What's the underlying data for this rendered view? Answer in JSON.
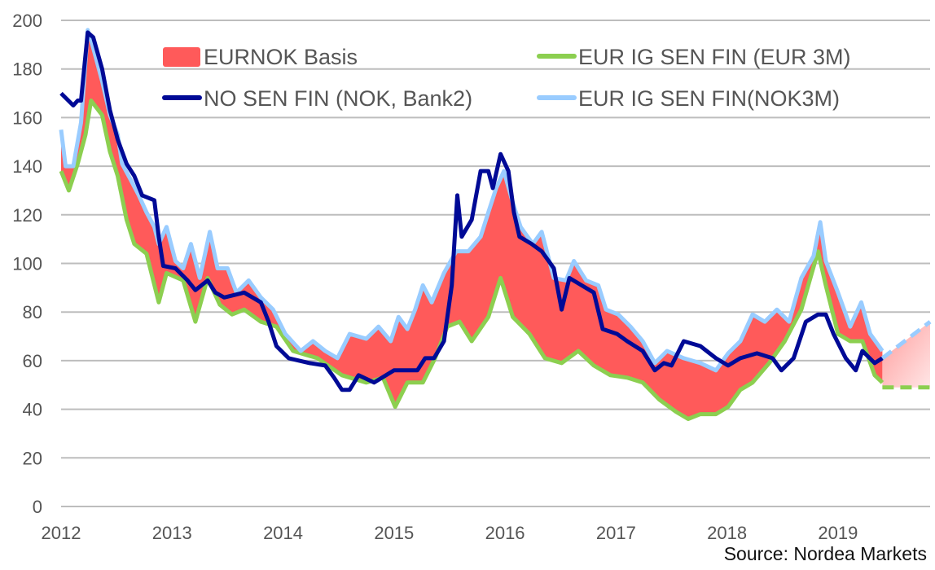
{
  "chart_data": {
    "type": "line",
    "title": "",
    "xlabel": "",
    "ylabel": "",
    "xlim": [
      2012,
      2019.83
    ],
    "ylim": [
      0,
      200
    ],
    "yticks": [
      0,
      20,
      40,
      60,
      80,
      100,
      120,
      140,
      160,
      180,
      200
    ],
    "xticks": [
      "2012",
      "2013",
      "2014",
      "2015",
      "2016",
      "2017",
      "2018",
      "2019"
    ],
    "grid": "horizontal",
    "legend_position": "top",
    "source": "Source: Nordea Markets",
    "basis_fill": {
      "name": "EURNOK Basis",
      "color": "#ff5a5a",
      "between": [
        "EUR IG SEN FIN(NOK3M)",
        "EUR IG SEN FIN (EUR 3M)"
      ]
    },
    "series": [
      {
        "name": "NO SEN FIN (NOK, Bank2)",
        "color": "#000a96",
        "points": [
          [
            2012.0,
            170
          ],
          [
            2012.11,
            165
          ],
          [
            2012.15,
            167
          ],
          [
            2012.18,
            167
          ],
          [
            2012.24,
            195
          ],
          [
            2012.29,
            193
          ],
          [
            2012.37,
            180
          ],
          [
            2012.44,
            163
          ],
          [
            2012.51,
            151
          ],
          [
            2012.59,
            141
          ],
          [
            2012.66,
            136
          ],
          [
            2012.73,
            128
          ],
          [
            2012.84,
            126
          ],
          [
            2012.88,
            111
          ],
          [
            2012.92,
            99
          ],
          [
            2013.03,
            98
          ],
          [
            2013.14,
            93
          ],
          [
            2013.21,
            89
          ],
          [
            2013.32,
            93
          ],
          [
            2013.39,
            88
          ],
          [
            2013.47,
            86
          ],
          [
            2013.65,
            88
          ],
          [
            2013.8,
            84
          ],
          [
            2013.87,
            76
          ],
          [
            2013.94,
            66
          ],
          [
            2014.05,
            61
          ],
          [
            2014.24,
            59
          ],
          [
            2014.38,
            58
          ],
          [
            2014.46,
            53
          ],
          [
            2014.53,
            48
          ],
          [
            2014.6,
            48
          ],
          [
            2014.68,
            54
          ],
          [
            2014.82,
            51
          ],
          [
            2015.0,
            56
          ],
          [
            2015.21,
            56
          ],
          [
            2015.28,
            61
          ],
          [
            2015.36,
            61
          ],
          [
            2015.45,
            68
          ],
          [
            2015.52,
            91
          ],
          [
            2015.57,
            128
          ],
          [
            2015.61,
            111
          ],
          [
            2015.7,
            118
          ],
          [
            2015.78,
            138
          ],
          [
            2015.85,
            138
          ],
          [
            2015.89,
            131
          ],
          [
            2015.96,
            145
          ],
          [
            2016.03,
            138
          ],
          [
            2016.08,
            121
          ],
          [
            2016.13,
            111
          ],
          [
            2016.24,
            108
          ],
          [
            2016.33,
            105
          ],
          [
            2016.44,
            98
          ],
          [
            2016.51,
            81
          ],
          [
            2016.58,
            94
          ],
          [
            2016.69,
            91
          ],
          [
            2016.8,
            88
          ],
          [
            2016.88,
            73
          ],
          [
            2017.01,
            71
          ],
          [
            2017.1,
            68
          ],
          [
            2017.24,
            64
          ],
          [
            2017.35,
            56
          ],
          [
            2017.43,
            59
          ],
          [
            2017.5,
            58
          ],
          [
            2017.61,
            68
          ],
          [
            2017.76,
            66
          ],
          [
            2017.9,
            61
          ],
          [
            2018.01,
            58
          ],
          [
            2018.12,
            61
          ],
          [
            2018.27,
            63
          ],
          [
            2018.41,
            61
          ],
          [
            2018.49,
            56
          ],
          [
            2018.6,
            61
          ],
          [
            2018.71,
            76
          ],
          [
            2018.82,
            79
          ],
          [
            2018.89,
            79
          ],
          [
            2018.96,
            71
          ],
          [
            2019.07,
            61
          ],
          [
            2019.16,
            56
          ],
          [
            2019.22,
            64
          ],
          [
            2019.33,
            59
          ],
          [
            2019.4,
            61
          ]
        ]
      },
      {
        "name": "EUR IG SEN FIN(NOK3M)",
        "color": "#99ccff",
        "points": [
          [
            2012.0,
            155
          ],
          [
            2012.04,
            140
          ],
          [
            2012.11,
            140
          ],
          [
            2012.18,
            158
          ],
          [
            2012.24,
            196
          ],
          [
            2012.27,
            192
          ],
          [
            2012.37,
            175
          ],
          [
            2012.44,
            161
          ],
          [
            2012.51,
            153
          ],
          [
            2012.55,
            141
          ],
          [
            2012.62,
            135
          ],
          [
            2012.7,
            128
          ],
          [
            2012.77,
            121
          ],
          [
            2012.84,
            115
          ],
          [
            2012.88,
            108
          ],
          [
            2012.95,
            115
          ],
          [
            2013.03,
            101
          ],
          [
            2013.1,
            98
          ],
          [
            2013.17,
            108
          ],
          [
            2013.25,
            94
          ],
          [
            2013.34,
            113
          ],
          [
            2013.41,
            98
          ],
          [
            2013.5,
            98
          ],
          [
            2013.58,
            88
          ],
          [
            2013.69,
            93
          ],
          [
            2013.8,
            86
          ],
          [
            2013.91,
            81
          ],
          [
            2014.02,
            71
          ],
          [
            2014.16,
            64
          ],
          [
            2014.27,
            68
          ],
          [
            2014.38,
            64
          ],
          [
            2014.49,
            61
          ],
          [
            2014.6,
            71
          ],
          [
            2014.75,
            69
          ],
          [
            2014.86,
            74
          ],
          [
            2014.97,
            68
          ],
          [
            2015.04,
            78
          ],
          [
            2015.12,
            73
          ],
          [
            2015.19,
            81
          ],
          [
            2015.26,
            91
          ],
          [
            2015.34,
            84
          ],
          [
            2015.45,
            96
          ],
          [
            2015.56,
            105
          ],
          [
            2015.67,
            105
          ],
          [
            2015.78,
            111
          ],
          [
            2015.85,
            121
          ],
          [
            2015.92,
            131
          ],
          [
            2015.99,
            138
          ],
          [
            2016.07,
            125
          ],
          [
            2016.14,
            115
          ],
          [
            2016.25,
            108
          ],
          [
            2016.33,
            113
          ],
          [
            2016.44,
            94
          ],
          [
            2016.55,
            93
          ],
          [
            2016.62,
            101
          ],
          [
            2016.73,
            93
          ],
          [
            2016.84,
            91
          ],
          [
            2016.91,
            81
          ],
          [
            2017.02,
            79
          ],
          [
            2017.13,
            74
          ],
          [
            2017.24,
            68
          ],
          [
            2017.35,
            59
          ],
          [
            2017.46,
            64
          ],
          [
            2017.61,
            61
          ],
          [
            2017.76,
            59
          ],
          [
            2017.9,
            56
          ],
          [
            2018.01,
            63
          ],
          [
            2018.12,
            68
          ],
          [
            2018.23,
            79
          ],
          [
            2018.34,
            76
          ],
          [
            2018.45,
            81
          ],
          [
            2018.56,
            76
          ],
          [
            2018.67,
            94
          ],
          [
            2018.78,
            103
          ],
          [
            2018.84,
            117
          ],
          [
            2018.89,
            101
          ],
          [
            2019.0,
            88
          ],
          [
            2019.11,
            74
          ],
          [
            2019.21,
            84
          ],
          [
            2019.29,
            71
          ],
          [
            2019.4,
            64
          ]
        ],
        "forecast": [
          [
            2019.4,
            61
          ],
          [
            2019.83,
            76
          ]
        ]
      },
      {
        "name": "EUR IG SEN FIN (EUR 3M)",
        "color": "#8ccf50",
        "points": [
          [
            2012.0,
            138
          ],
          [
            2012.07,
            130
          ],
          [
            2012.15,
            141
          ],
          [
            2012.22,
            153
          ],
          [
            2012.27,
            167
          ],
          [
            2012.37,
            161
          ],
          [
            2012.44,
            146
          ],
          [
            2012.51,
            136
          ],
          [
            2012.59,
            118
          ],
          [
            2012.66,
            108
          ],
          [
            2012.77,
            104
          ],
          [
            2012.88,
            84
          ],
          [
            2012.95,
            96
          ],
          [
            2013.1,
            93
          ],
          [
            2013.21,
            76
          ],
          [
            2013.32,
            94
          ],
          [
            2013.43,
            83
          ],
          [
            2013.54,
            79
          ],
          [
            2013.65,
            81
          ],
          [
            2013.8,
            76
          ],
          [
            2013.94,
            74
          ],
          [
            2014.09,
            64
          ],
          [
            2014.31,
            61
          ],
          [
            2014.53,
            54
          ],
          [
            2014.75,
            51
          ],
          [
            2014.9,
            53
          ],
          [
            2015.01,
            41
          ],
          [
            2015.12,
            51
          ],
          [
            2015.26,
            51
          ],
          [
            2015.37,
            61
          ],
          [
            2015.48,
            74
          ],
          [
            2015.59,
            76
          ],
          [
            2015.7,
            68
          ],
          [
            2015.85,
            78
          ],
          [
            2015.96,
            94
          ],
          [
            2016.07,
            78
          ],
          [
            2016.22,
            71
          ],
          [
            2016.36,
            61
          ],
          [
            2016.51,
            59
          ],
          [
            2016.66,
            64
          ],
          [
            2016.8,
            58
          ],
          [
            2016.95,
            54
          ],
          [
            2017.1,
            53
          ],
          [
            2017.24,
            51
          ],
          [
            2017.39,
            44
          ],
          [
            2017.54,
            39
          ],
          [
            2017.65,
            36
          ],
          [
            2017.76,
            38
          ],
          [
            2017.9,
            38
          ],
          [
            2018.01,
            41
          ],
          [
            2018.12,
            48
          ],
          [
            2018.23,
            51
          ],
          [
            2018.38,
            59
          ],
          [
            2018.52,
            68
          ],
          [
            2018.67,
            81
          ],
          [
            2018.82,
            105
          ],
          [
            2018.89,
            91
          ],
          [
            2019.0,
            71
          ],
          [
            2019.11,
            68
          ],
          [
            2019.22,
            68
          ],
          [
            2019.33,
            54
          ],
          [
            2019.4,
            51
          ]
        ],
        "forecast": [
          [
            2019.4,
            49
          ],
          [
            2019.83,
            49
          ]
        ]
      }
    ]
  }
}
